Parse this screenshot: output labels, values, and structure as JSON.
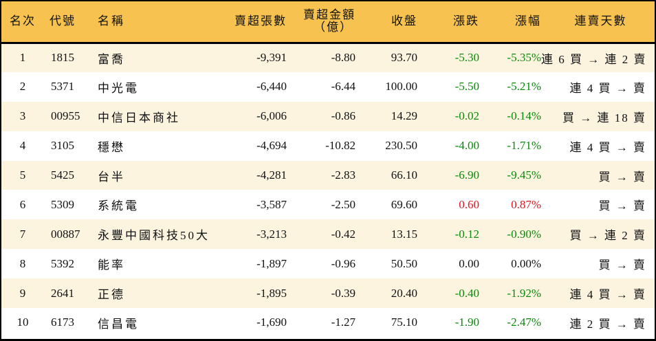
{
  "colors": {
    "header_bg": "#f7c24f",
    "row_alt_bg": "#fdf4e0",
    "row_bg": "#ffffff",
    "down": "#0a8a0a",
    "up": "#e0141e"
  },
  "table": {
    "headers": {
      "rank": "名次",
      "code": "代號",
      "name": "名稱",
      "net_sell_shares": "賣超張數",
      "net_sell_amount_line1": "賣超金額",
      "net_sell_amount_line2": "（億）",
      "close": "收盤",
      "change": "漲跌",
      "change_pct": "漲幅",
      "streak": "連賣天數"
    },
    "rows": [
      {
        "rank": "1",
        "code": "1815",
        "name": "富喬",
        "shares": "-9,391",
        "amount": "-8.80",
        "close": "93.70",
        "change": "-5.30",
        "pct": "-5.35%",
        "dir": "down",
        "streak": "連 6 買 → 連 2 賣"
      },
      {
        "rank": "2",
        "code": "5371",
        "name": "中光電",
        "shares": "-6,440",
        "amount": "-6.44",
        "close": "100.00",
        "change": "-5.50",
        "pct": "-5.21%",
        "dir": "down",
        "streak": "連 4 買 → 賣"
      },
      {
        "rank": "3",
        "code": "00955",
        "name": "中信日本商社",
        "shares": "-6,006",
        "amount": "-0.86",
        "close": "14.29",
        "change": "-0.02",
        "pct": "-0.14%",
        "dir": "down",
        "streak": "買 → 連 18 賣"
      },
      {
        "rank": "4",
        "code": "3105",
        "name": "穩懋",
        "shares": "-4,694",
        "amount": "-10.82",
        "close": "230.50",
        "change": "-4.00",
        "pct": "-1.71%",
        "dir": "down",
        "streak": "連 4 買 → 賣"
      },
      {
        "rank": "5",
        "code": "5425",
        "name": "台半",
        "shares": "-4,281",
        "amount": "-2.83",
        "close": "66.10",
        "change": "-6.90",
        "pct": "-9.45%",
        "dir": "down",
        "streak": "買 → 賣"
      },
      {
        "rank": "6",
        "code": "5309",
        "name": "系統電",
        "shares": "-3,587",
        "amount": "-2.50",
        "close": "69.60",
        "change": "0.60",
        "pct": "0.87%",
        "dir": "up",
        "streak": "買 → 賣"
      },
      {
        "rank": "7",
        "code": "00887",
        "name": "永豐中國科技50大",
        "shares": "-3,213",
        "amount": "-0.42",
        "close": "13.15",
        "change": "-0.12",
        "pct": "-0.90%",
        "dir": "down",
        "streak": "買 → 連 2 賣"
      },
      {
        "rank": "8",
        "code": "5392",
        "name": "能率",
        "shares": "-1,897",
        "amount": "-0.96",
        "close": "50.50",
        "change": "0.00",
        "pct": "0.00%",
        "dir": "flat",
        "streak": "買 → 賣"
      },
      {
        "rank": "9",
        "code": "2641",
        "name": "正德",
        "shares": "-1,895",
        "amount": "-0.39",
        "close": "20.40",
        "change": "-0.40",
        "pct": "-1.92%",
        "dir": "down",
        "streak": "連 4 買 → 賣"
      },
      {
        "rank": "10",
        "code": "6173",
        "name": "信昌電",
        "shares": "-1,690",
        "amount": "-1.27",
        "close": "75.10",
        "change": "-1.90",
        "pct": "-2.47%",
        "dir": "down",
        "streak": "連 2 買 → 賣"
      }
    ]
  }
}
